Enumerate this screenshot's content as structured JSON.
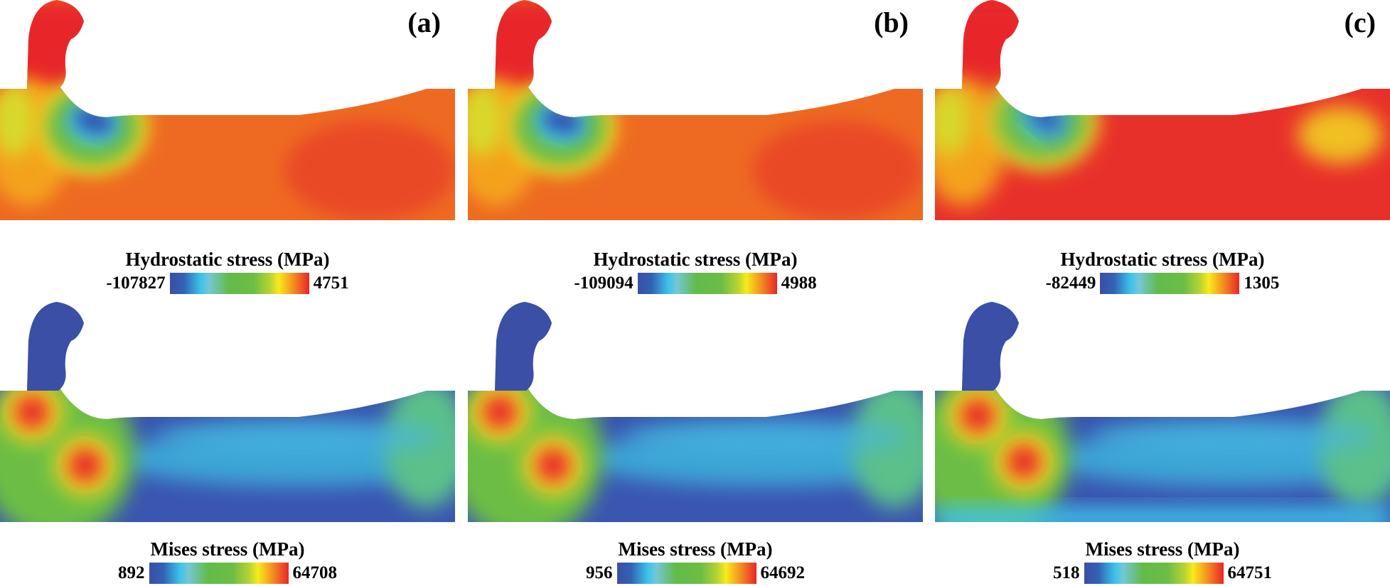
{
  "panels": [
    {
      "label": "(a)",
      "hydro": {
        "title": "Hydrostatic stress (MPa)",
        "min": "-107827",
        "max": "4751"
      },
      "mises": {
        "title": "Mises stress (MPa)",
        "min": "892",
        "max": "64708"
      }
    },
    {
      "label": "(b)",
      "hydro": {
        "title": "Hydrostatic stress (MPa)",
        "min": "-109094",
        "max": "4988"
      },
      "mises": {
        "title": "Mises stress (MPa)",
        "min": "956",
        "max": "64692"
      }
    },
    {
      "label": "(c)",
      "hydro": {
        "title": "Hydrostatic stress (MPa)",
        "min": "-82449",
        "max": "1305"
      },
      "mises": {
        "title": "Mises stress (MPa)",
        "min": "518",
        "max": "64751"
      }
    }
  ],
  "colors": {
    "blue": "#3a4fa5",
    "cyan": "#3cc3ea",
    "green": "#6cbd45",
    "yellow": "#f7eb1b",
    "orange": "#ee6a22",
    "red": "#e8262a"
  }
}
